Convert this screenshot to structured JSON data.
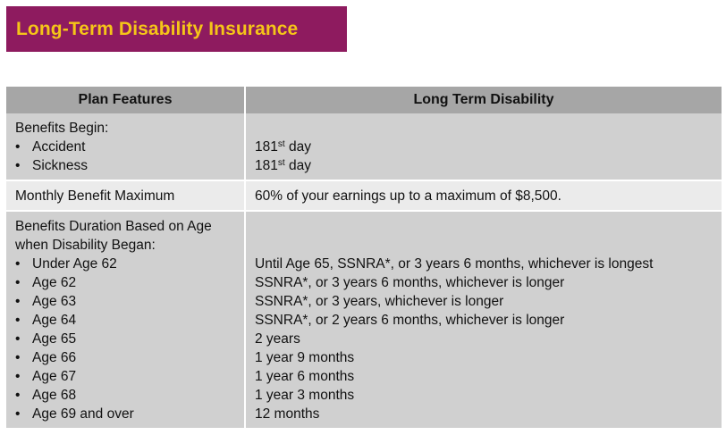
{
  "title": "Long-Term Disability Insurance",
  "table": {
    "headers": [
      "Plan Features",
      "Long Term Disability"
    ],
    "benefits_begin": {
      "heading": "Benefits Begin:",
      "items": [
        {
          "label": "Accident",
          "value": "181",
          "suffix": "st",
          "rest": " day"
        },
        {
          "label": "Sickness",
          "value": "181",
          "suffix": "st",
          "rest": " day"
        }
      ]
    },
    "monthly_max": {
      "label": "Monthly Benefit Maximum",
      "value": "60% of your earnings up to a maximum of $8,500."
    },
    "duration": {
      "heading_line1": "Benefits Duration Based on Age",
      "heading_line2": "when Disability Began:",
      "items": [
        {
          "label": "Under Age 62",
          "value": "Until Age 65, SSNRA*, or 3 years 6 months, whichever is longest"
        },
        {
          "label": "Age 62",
          "value": "SSNRA*, or 3 years 6 months, whichever is longer"
        },
        {
          "label": "Age 63",
          "value": "SSNRA*, or 3 years, whichever is longer"
        },
        {
          "label": "Age 64",
          "value": "SSNRA*, or 2 years 6 months, whichever is longer"
        },
        {
          "label": "Age 65",
          "value": "2 years"
        },
        {
          "label": "Age 66",
          "value": "1 year 9 months"
        },
        {
          "label": "Age 67",
          "value": "1 year 6 months"
        },
        {
          "label": "Age 68",
          "value": "1 year 3 months"
        },
        {
          "label": "Age 69 and over",
          "value": "12 months"
        }
      ]
    }
  }
}
